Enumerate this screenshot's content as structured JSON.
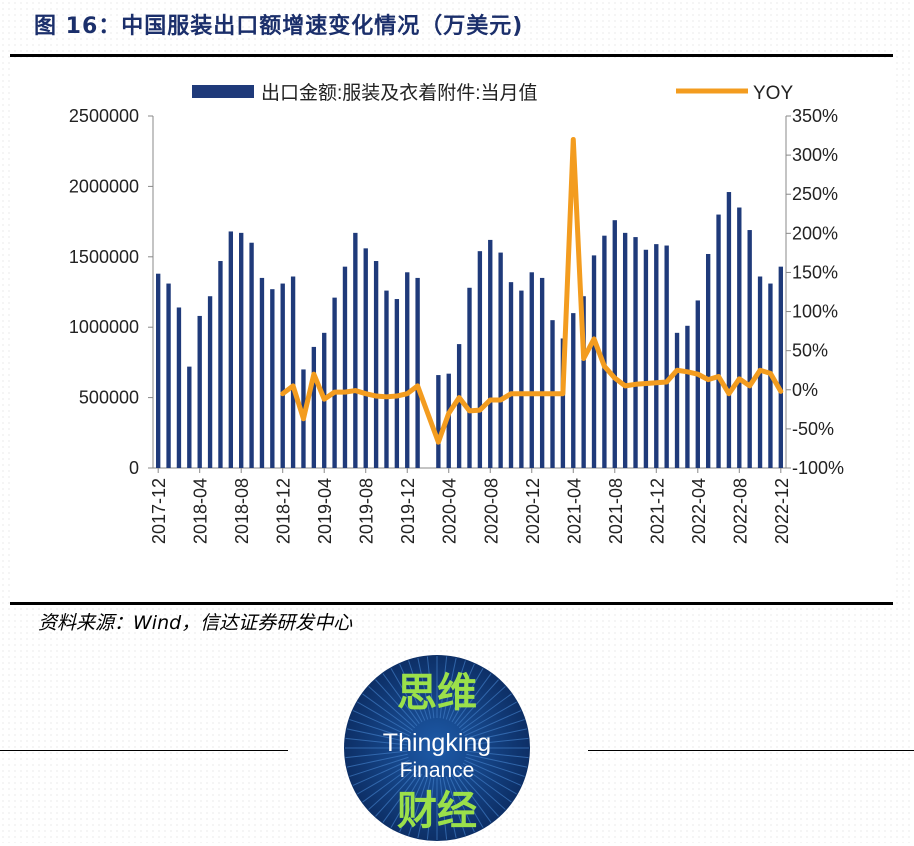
{
  "figure_title": "图 16：中国服装出口额增速变化情况（万美元)",
  "source_note": "资料来源：Wind，信达证券研发中心",
  "logo": {
    "line1": "思维",
    "line2": "Thingking",
    "line3": "Finance",
    "line4": "财经"
  },
  "colors": {
    "bar": "#1f3a7a",
    "line": "#f39c1f",
    "title": "#1b2f6b",
    "logo_bg": "#143f80",
    "logo_text": "#9be04a"
  },
  "chart_data": {
    "type": "bar",
    "title": "",
    "legend": [
      {
        "name": "出口金额:服装及衣着附件:当月值",
        "kind": "bar"
      },
      {
        "name": "YOY",
        "kind": "line"
      }
    ],
    "legend_position": "top",
    "y_left": {
      "min": 0,
      "max": 2500000,
      "ticks": [
        0,
        500000,
        1000000,
        1500000,
        2000000,
        2500000
      ],
      "tick_labels": [
        "0",
        "500000",
        "1000000",
        "1500000",
        "2000000",
        "2500000"
      ]
    },
    "y_right": {
      "min": -100,
      "max": 350,
      "ticks": [
        -100,
        -50,
        0,
        50,
        100,
        150,
        200,
        250,
        300,
        350
      ],
      "tick_labels": [
        "-100%",
        "-50%",
        "0%",
        "50%",
        "100%",
        "150%",
        "200%",
        "250%",
        "300%",
        "350%"
      ]
    },
    "x_tick_labels": [
      "2017-12",
      "2018-04",
      "2018-08",
      "2018-12",
      "2019-04",
      "2019-08",
      "2019-12",
      "2020-04",
      "2020-08",
      "2020-12",
      "2021-04",
      "2021-08",
      "2021-12",
      "2022-04",
      "2022-08",
      "2022-12"
    ],
    "x_tick_every": 4,
    "categories": [
      "2017-12",
      "2018-01",
      "2018-02",
      "2018-03",
      "2018-04",
      "2018-05",
      "2018-06",
      "2018-07",
      "2018-08",
      "2018-09",
      "2018-10",
      "2018-11",
      "2018-12",
      "2019-01",
      "2019-02",
      "2019-03",
      "2019-04",
      "2019-05",
      "2019-06",
      "2019-07",
      "2019-08",
      "2019-09",
      "2019-10",
      "2019-11",
      "2019-12",
      "2020-01",
      "2020-02",
      "2020-03",
      "2020-04",
      "2020-05",
      "2020-06",
      "2020-07",
      "2020-08",
      "2020-09",
      "2020-10",
      "2020-11",
      "2020-12",
      "2021-01",
      "2021-02",
      "2021-03",
      "2021-04",
      "2021-05",
      "2021-06",
      "2021-07",
      "2021-08",
      "2021-09",
      "2021-10",
      "2021-11",
      "2021-12",
      "2022-01",
      "2022-02",
      "2022-03",
      "2022-04",
      "2022-05",
      "2022-06",
      "2022-07",
      "2022-08",
      "2022-09",
      "2022-10",
      "2022-11",
      "2022-12"
    ],
    "series": [
      {
        "name": "出口金额:服装及衣着附件:当月值",
        "type": "bar",
        "axis": "left",
        "values": [
          1380000,
          1310000,
          1140000,
          720000,
          1080000,
          1220000,
          1470000,
          1680000,
          1670000,
          1600000,
          1350000,
          1270000,
          1310000,
          1360000,
          700000,
          860000,
          960000,
          1210000,
          1430000,
          1670000,
          1560000,
          1470000,
          1260000,
          1200000,
          1390000,
          1350000,
          null,
          660000,
          670000,
          880000,
          1280000,
          1540000,
          1620000,
          1530000,
          1320000,
          1260000,
          1390000,
          1350000,
          1050000,
          920000,
          1100000,
          1220000,
          1510000,
          1650000,
          1760000,
          1670000,
          1640000,
          1550000,
          1590000,
          1580000,
          960000,
          1010000,
          1190000,
          1520000,
          1800000,
          1960000,
          1850000,
          1690000,
          1360000,
          1310000,
          1430000
        ]
      },
      {
        "name": "YOY",
        "type": "line",
        "axis": "right",
        "values": [
          null,
          null,
          null,
          null,
          null,
          null,
          null,
          null,
          null,
          null,
          null,
          null,
          -5,
          5,
          -37,
          20,
          -12,
          -3,
          -3,
          -1,
          -5,
          -8,
          -9,
          -8,
          -5,
          5,
          null,
          -67,
          -30,
          -10,
          -27,
          -26,
          -13,
          -13,
          -5,
          -5,
          -5,
          -5,
          -5,
          -5,
          320,
          40,
          65,
          30,
          15,
          5,
          7,
          8,
          9,
          10,
          25,
          23,
          20,
          13,
          17,
          -5,
          14,
          5,
          25,
          21,
          -2
        ]
      }
    ]
  }
}
